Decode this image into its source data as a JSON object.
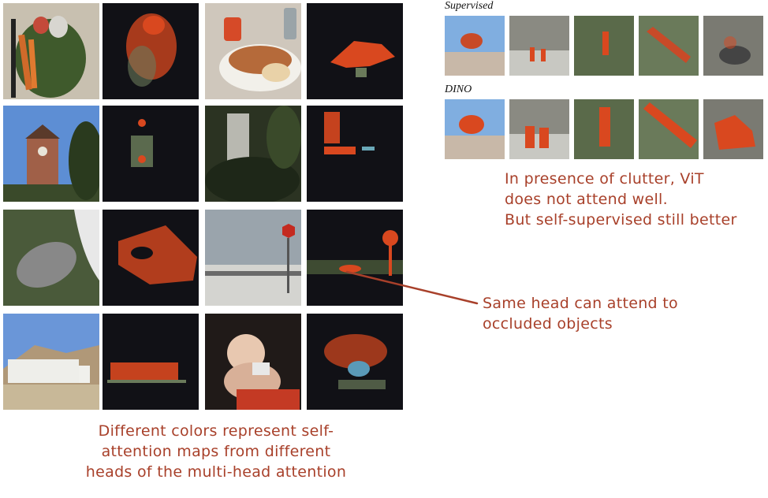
{
  "left_grid": {
    "rows": [
      {
        "pairs": [
          "vegetables",
          "breakfast"
        ]
      },
      {
        "pairs": [
          "clock-tower",
          "forest-building"
        ]
      },
      {
        "pairs": [
          "zebra",
          "stop-sign-road"
        ]
      },
      {
        "pairs": [
          "truck",
          "teddy-bear"
        ]
      }
    ],
    "overlay_color": "#d9481f"
  },
  "right_figure": {
    "rows": [
      {
        "label": "Supervised",
        "images": [
          "bird",
          "stairs",
          "person-field",
          "train",
          "motorbike"
        ]
      },
      {
        "label": "DINO",
        "images": [
          "bird",
          "stairs",
          "person-field",
          "train",
          "motorbike"
        ]
      }
    ]
  },
  "annotations": {
    "clutter": [
      "In presence of clutter, ViT",
      "does not attend well.",
      "But self-supervised still better"
    ],
    "occluded": [
      "Same head can attend to",
      "occluded objects"
    ],
    "colors": [
      "Different colors represent self-",
      "attention maps from different",
      "heads of the multi-head attention"
    ],
    "color": "#a8402a"
  }
}
